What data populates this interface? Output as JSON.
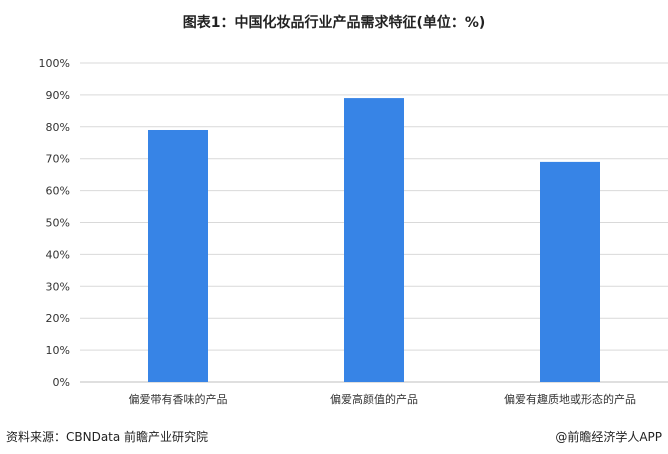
{
  "chart_data": {
    "type": "bar",
    "title": "图表1：中国化妆品行业产品需求特征(单位：%)",
    "categories": [
      "偏爱带有香味的产品",
      "偏爱高颜值的产品",
      "偏爱有趣质地或形态的产品"
    ],
    "values": [
      79,
      89,
      69
    ],
    "ylim": [
      0,
      100
    ],
    "yticks": [
      "0%",
      "10%",
      "20%",
      "30%",
      "40%",
      "50%",
      "60%",
      "70%",
      "80%",
      "90%",
      "100%"
    ],
    "grid": true,
    "bar_color": "#3784e6"
  },
  "footer": {
    "source": "资料来源：CBNData 前瞻产业研究院",
    "credit": "@前瞻经济学人APP"
  },
  "watermark": "前瞻产业研究院"
}
